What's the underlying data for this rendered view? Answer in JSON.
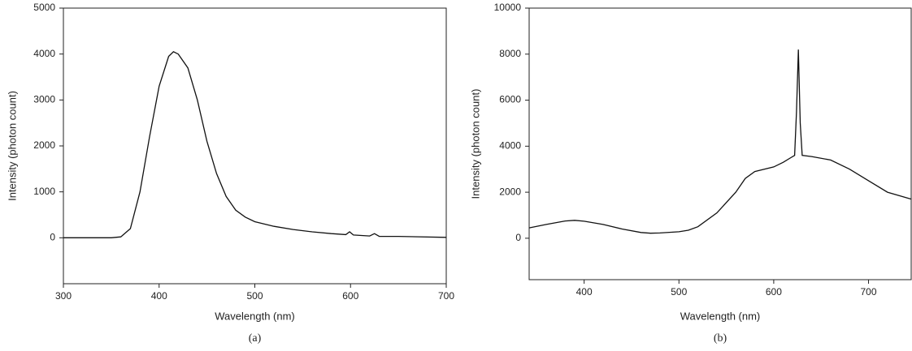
{
  "chart_data": [
    {
      "type": "line",
      "caption": "(a)",
      "x_label": "Wavelength (nm)",
      "y_label": "Intensity (photon count)",
      "x": [
        300,
        350,
        360,
        370,
        380,
        390,
        400,
        410,
        415,
        420,
        430,
        440,
        450,
        460,
        470,
        480,
        490,
        500,
        520,
        540,
        560,
        580,
        595,
        599,
        603,
        620,
        625,
        630,
        650,
        700
      ],
      "values": [
        0,
        0,
        20,
        200,
        1000,
        2200,
        3300,
        3950,
        4050,
        4000,
        3700,
        3000,
        2100,
        1400,
        900,
        600,
        450,
        350,
        250,
        180,
        130,
        90,
        70,
        130,
        60,
        40,
        90,
        30,
        30,
        10
      ],
      "color": "#111111",
      "xlim": [
        300,
        700
      ],
      "xticks": [
        300,
        400,
        500,
        600,
        700
      ],
      "ylim": [
        -1000,
        5000
      ],
      "yticks": [
        0,
        1000,
        2000,
        3000,
        4000,
        5000
      ]
    },
    {
      "type": "line",
      "caption": "(b)",
      "x_label": "Wavelength (nm)",
      "y_label": "Intensity (photon count)",
      "x": [
        342,
        360,
        380,
        390,
        400,
        420,
        440,
        460,
        470,
        480,
        500,
        510,
        520,
        540,
        560,
        570,
        580,
        600,
        610,
        618,
        622,
        624,
        626,
        628,
        630,
        640,
        660,
        680,
        700,
        720,
        745
      ],
      "values": [
        450,
        600,
        750,
        780,
        740,
        600,
        400,
        250,
        220,
        230,
        280,
        350,
        500,
        1100,
        2000,
        2600,
        2900,
        3100,
        3300,
        3500,
        3600,
        5500,
        8200,
        5000,
        3600,
        3550,
        3400,
        3000,
        2500,
        2000,
        1700
      ],
      "color": "#111111",
      "xlim": [
        342,
        745
      ],
      "xticks": [
        400,
        500,
        600,
        700
      ],
      "ylim": [
        -1800,
        10000
      ],
      "yticks": [
        0,
        2000,
        4000,
        6000,
        8000,
        10000
      ]
    }
  ]
}
